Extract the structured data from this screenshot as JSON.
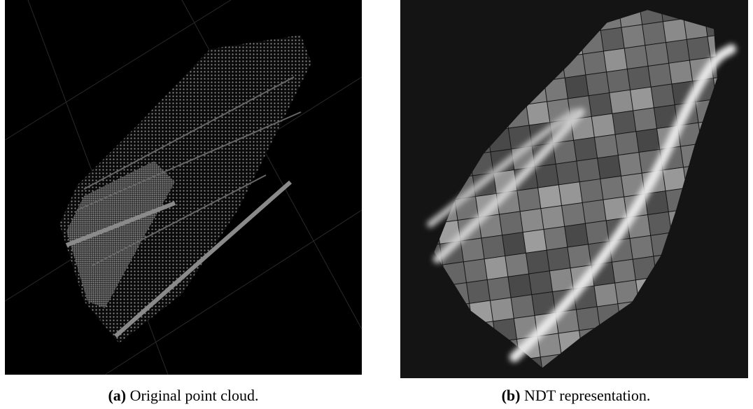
{
  "subfigures": [
    {
      "label": "(a)",
      "caption": "Original point cloud."
    },
    {
      "label": "(b)",
      "caption": "NDT representation."
    }
  ]
}
